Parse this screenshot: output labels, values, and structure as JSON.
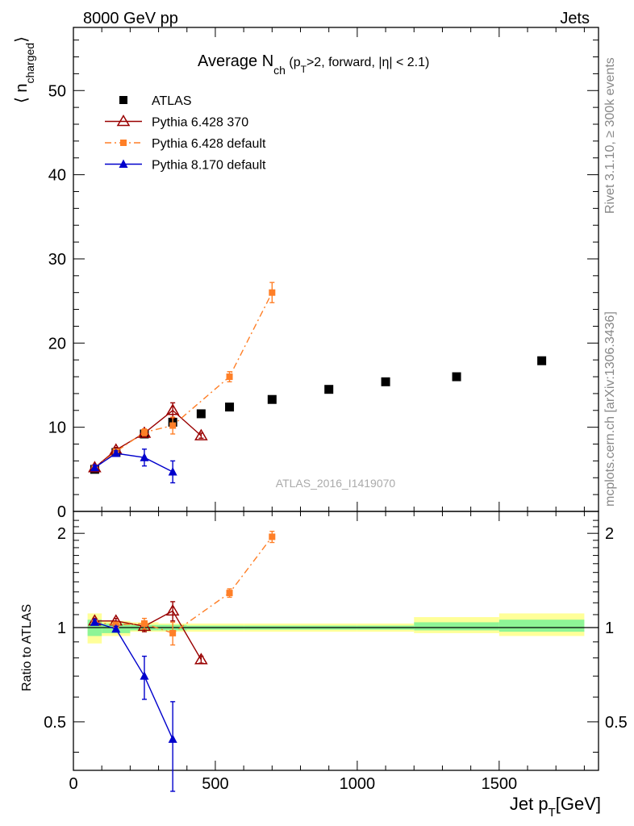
{
  "header": {
    "energy": "8000 GeV pp",
    "process": "Jets"
  },
  "side": {
    "rivet": "Rivet 3.1.10, ≥ 300k events",
    "mcplots": "mcplots.cern.ch [arXiv:1306.3436]"
  },
  "watermark": "ATLAS_2016_I1419070",
  "title_html": {
    "main": "Average N",
    "sub": "ch",
    "cond_a": " (p",
    "cond_sub": "T",
    "cond_b": ">2, forward, |η| < 2.1)"
  },
  "legend": [
    {
      "label": "ATLAS",
      "color": "#000000",
      "marker": "square-filled",
      "line": "none"
    },
    {
      "label": "Pythia 6.428 370",
      "color": "#990000",
      "marker": "triangle-open",
      "line": "solid"
    },
    {
      "label": "Pythia 6.428 default",
      "color": "#ff7f27",
      "marker": "square-filled",
      "line": "dashdot"
    },
    {
      "label": "Pythia 8.170 default",
      "color": "#0000cc",
      "marker": "triangle-filled",
      "line": "solid"
    }
  ],
  "axes": {
    "main_ylabel_pre": "⟨ n",
    "main_ylabel_sub": "charged",
    "main_ylabel_post": "⟩",
    "ratio_ylabel": "Ratio to ATLAS",
    "xlabel_main": "Jet p",
    "xlabel_sub": "T",
    "xlabel_unit": "[GeV]",
    "x_ticks": [
      "0",
      "500",
      "1000",
      "1500"
    ],
    "main_y_ticks": [
      "0",
      "10",
      "20",
      "30",
      "40",
      "50"
    ],
    "ratio_y_ticks": [
      "0.5",
      "1",
      "2"
    ]
  },
  "chart_data": {
    "type": "scatter",
    "xlim": [
      0,
      1850
    ],
    "main_ylim": [
      0,
      57.5
    ],
    "ratio_ylim": [
      0.35,
      2.35
    ],
    "ratio_scale": "log",
    "grid": false,
    "legend_position": "top-left",
    "series": [
      {
        "name": "ATLAS",
        "color": "#000000",
        "x": [
          75,
          150,
          250,
          350,
          450,
          550,
          700,
          900,
          1100,
          1350,
          1650
        ],
        "y": [
          5.0,
          7.0,
          9.2,
          10.6,
          11.6,
          12.4,
          13.3,
          14.5,
          15.4,
          16.0,
          17.9
        ]
      },
      {
        "name": "Pythia 6.428 370",
        "color": "#990000",
        "x": [
          75,
          150,
          250,
          350,
          450
        ],
        "y": [
          5.2,
          7.3,
          9.3,
          12.0,
          9.0
        ],
        "yerr": [
          0.3,
          0.3,
          0.4,
          0.9,
          0.3
        ],
        "ratio": [
          1.05,
          1.05,
          1.01,
          1.13,
          0.79
        ],
        "ratio_err": [
          0.02,
          0.02,
          0.04,
          0.08,
          0.02
        ]
      },
      {
        "name": "Pythia 6.428 default",
        "color": "#ff7f27",
        "x": [
          75,
          150,
          250,
          350,
          550,
          700
        ],
        "y": [
          5.2,
          7.1,
          9.4,
          10.2,
          16.0,
          26.0
        ],
        "yerr": [
          0.3,
          0.3,
          0.4,
          1.0,
          0.6,
          1.2
        ],
        "ratio": [
          1.04,
          1.02,
          1.03,
          0.96,
          1.29,
          1.95
        ],
        "ratio_err": [
          0.02,
          0.02,
          0.04,
          0.08,
          0.04,
          0.08
        ]
      },
      {
        "name": "Pythia 8.170 default",
        "color": "#0000cc",
        "x": [
          75,
          150,
          250,
          350
        ],
        "y": [
          5.2,
          6.9,
          6.4,
          4.7
        ],
        "yerr": [
          0.3,
          0.3,
          1.0,
          1.3
        ],
        "ratio": [
          1.04,
          0.99,
          0.7,
          0.44
        ],
        "ratio_err": [
          0.02,
          0.02,
          0.11,
          0.14
        ]
      }
    ],
    "ratio_bands": [
      {
        "x0": 50,
        "x1": 100,
        "yellow": [
          0.89,
          1.11
        ],
        "green": [
          0.94,
          1.06
        ]
      },
      {
        "x0": 100,
        "x1": 200,
        "yellow": [
          0.94,
          1.05
        ],
        "green": [
          0.96,
          1.03
        ]
      },
      {
        "x0": 200,
        "x1": 300,
        "yellow": [
          0.97,
          1.04
        ],
        "green": [
          0.98,
          1.02
        ]
      },
      {
        "x0": 300,
        "x1": 400,
        "yellow": [
          0.97,
          1.03
        ],
        "green": [
          0.98,
          1.02
        ]
      },
      {
        "x0": 400,
        "x1": 600,
        "yellow": [
          0.97,
          1.03
        ],
        "green": [
          0.985,
          1.015
        ]
      },
      {
        "x0": 600,
        "x1": 800,
        "yellow": [
          0.97,
          1.03
        ],
        "green": [
          0.985,
          1.015
        ]
      },
      {
        "x0": 800,
        "x1": 1000,
        "yellow": [
          0.97,
          1.03
        ],
        "green": [
          0.985,
          1.015
        ]
      },
      {
        "x0": 1000,
        "x1": 1200,
        "yellow": [
          0.97,
          1.03
        ],
        "green": [
          0.985,
          1.015
        ]
      },
      {
        "x0": 1200,
        "x1": 1500,
        "yellow": [
          0.96,
          1.08
        ],
        "green": [
          0.98,
          1.04
        ]
      },
      {
        "x0": 1500,
        "x1": 1800,
        "yellow": [
          0.94,
          1.11
        ],
        "green": [
          0.97,
          1.06
        ]
      }
    ]
  }
}
